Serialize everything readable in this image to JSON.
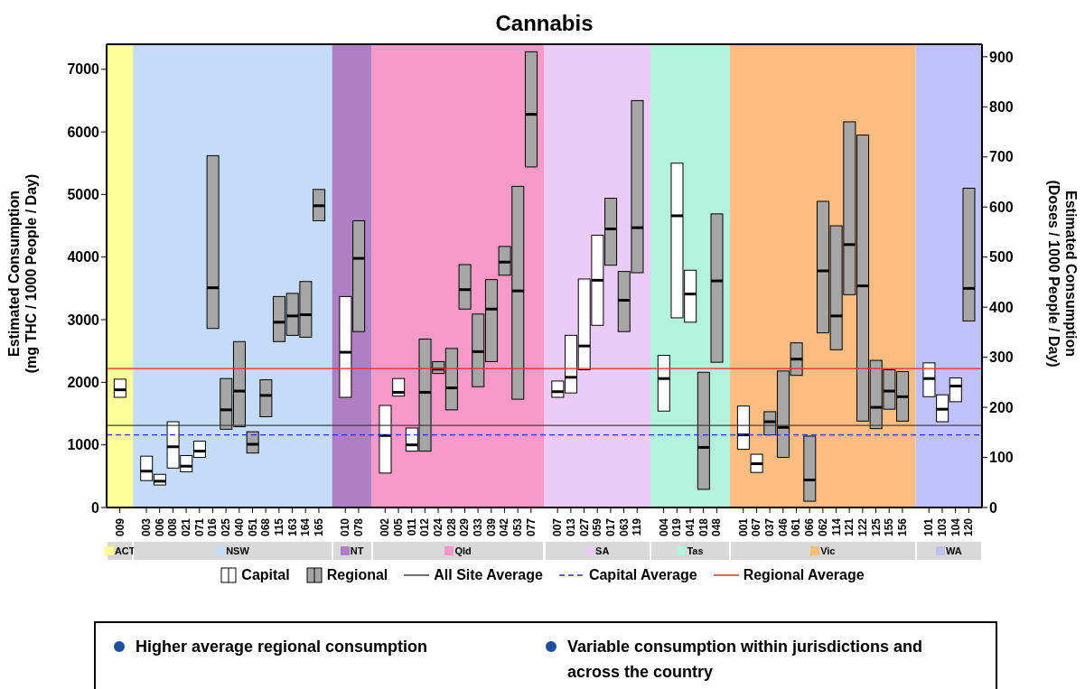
{
  "chart_data": {
    "type": "box",
    "title": "Cannabis",
    "ylabel": "Estimated Consumption\n(mg THC / 1000 People / Day)",
    "y2label": "Estimated Consumption\n(Doses / 1000 People / Day)",
    "categories": [
      "009",
      "003",
      "006",
      "008",
      "021",
      "071",
      "016",
      "025",
      "040",
      "051",
      "068",
      "115",
      "163",
      "164",
      "165",
      "010",
      "078",
      "002",
      "005",
      "011",
      "012",
      "024",
      "028",
      "029",
      "033",
      "039",
      "042",
      "053",
      "077",
      "007",
      "013",
      "027",
      "059",
      "017",
      "063",
      "119",
      "004",
      "019",
      "041",
      "018",
      "048",
      "001",
      "067",
      "037",
      "046",
      "061",
      "066",
      "062",
      "114",
      "121",
      "122",
      "125",
      "155",
      "156",
      "101",
      "103",
      "104",
      "120"
    ],
    "series": [
      {
        "name": "Capital",
        "color": "#ffffff",
        "boxes": [
          {
            "low": 1760,
            "q1": 1760,
            "median": 1880,
            "q3": 2050,
            "high": 2050
          },
          {
            "low": 430,
            "q1": 430,
            "median": 580,
            "q3": 820,
            "high": 820
          },
          {
            "low": 360,
            "q1": 360,
            "median": 420,
            "q3": 530,
            "high": 530
          },
          {
            "low": 630,
            "q1": 630,
            "median": 970,
            "q3": 1370,
            "high": 1370
          },
          {
            "low": 570,
            "q1": 570,
            "median": 660,
            "q3": 830,
            "high": 830
          },
          {
            "low": 800,
            "q1": 800,
            "median": 900,
            "q3": 1060,
            "high": 1060
          },
          null,
          null,
          null,
          null,
          null,
          null,
          null,
          null,
          null,
          {
            "low": 1760,
            "q1": 1760,
            "median": 2480,
            "q3": 3370,
            "high": 3370
          },
          null,
          {
            "low": 550,
            "q1": 550,
            "median": 1150,
            "q3": 1630,
            "high": 1630
          },
          {
            "low": 1780,
            "q1": 1780,
            "median": 1840,
            "q3": 2060,
            "high": 2060
          },
          {
            "low": 900,
            "q1": 900,
            "median": 1000,
            "q3": 1270,
            "high": 1270
          },
          null,
          null,
          null,
          null,
          null,
          null,
          null,
          null,
          null,
          {
            "low": 1760,
            "q1": 1760,
            "median": 1850,
            "q3": 2020,
            "high": 2020
          },
          {
            "low": 1830,
            "q1": 1830,
            "median": 2080,
            "q3": 2750,
            "high": 2750
          },
          {
            "low": 2200,
            "q1": 2200,
            "median": 2580,
            "q3": 3650,
            "high": 3650
          },
          {
            "low": 2910,
            "q1": 2910,
            "median": 3630,
            "q3": 4350,
            "high": 4350
          },
          null,
          null,
          null,
          {
            "low": 1540,
            "q1": 1540,
            "median": 2060,
            "q3": 2430,
            "high": 2430
          },
          {
            "low": 3030,
            "q1": 3030,
            "median": 4660,
            "q3": 5500,
            "high": 5500
          },
          {
            "low": 2960,
            "q1": 2960,
            "median": 3410,
            "q3": 3790,
            "high": 3790
          },
          null,
          null,
          {
            "low": 930,
            "q1": 930,
            "median": 1160,
            "q3": 1620,
            "high": 1620
          },
          {
            "low": 560,
            "q1": 560,
            "median": 700,
            "q3": 850,
            "high": 850
          },
          null,
          null,
          null,
          null,
          null,
          null,
          null,
          null,
          null,
          null,
          null,
          {
            "low": 1770,
            "q1": 1770,
            "median": 2060,
            "q3": 2310,
            "high": 2310
          },
          {
            "low": 1370,
            "q1": 1370,
            "median": 1570,
            "q3": 1800,
            "high": 1800
          },
          {
            "low": 1690,
            "q1": 1690,
            "median": 1940,
            "q3": 2070,
            "high": 2070
          },
          null
        ]
      },
      {
        "name": "Regional",
        "color": "#a6a6a6",
        "boxes": [
          null,
          null,
          null,
          null,
          null,
          null,
          {
            "low": 2860,
            "q1": 2860,
            "median": 3510,
            "q3": 5620,
            "high": 5620
          },
          {
            "low": 1250,
            "q1": 1250,
            "median": 1560,
            "q3": 2060,
            "high": 2060
          },
          {
            "low": 1290,
            "q1": 1290,
            "median": 1860,
            "q3": 2650,
            "high": 2650
          },
          {
            "low": 870,
            "q1": 870,
            "median": 1010,
            "q3": 1210,
            "high": 1210
          },
          {
            "low": 1450,
            "q1": 1450,
            "median": 1790,
            "q3": 2040,
            "high": 2040
          },
          {
            "low": 2650,
            "q1": 2650,
            "median": 2960,
            "q3": 3370,
            "high": 3370
          },
          {
            "low": 2750,
            "q1": 2750,
            "median": 3060,
            "q3": 3420,
            "high": 3420
          },
          {
            "low": 2720,
            "q1": 2720,
            "median": 3080,
            "q3": 3610,
            "high": 3610
          },
          {
            "low": 4580,
            "q1": 4580,
            "median": 4820,
            "q3": 5080,
            "high": 5080
          },
          null,
          {
            "low": 2810,
            "q1": 2810,
            "median": 3980,
            "q3": 4580,
            "high": 4580
          },
          null,
          null,
          null,
          {
            "low": 900,
            "q1": 900,
            "median": 1840,
            "q3": 2690,
            "high": 2690
          },
          {
            "low": 2140,
            "q1": 2140,
            "median": 2210,
            "q3": 2330,
            "high": 2330
          },
          {
            "low": 1560,
            "q1": 1560,
            "median": 1910,
            "q3": 2540,
            "high": 2540
          },
          {
            "low": 3170,
            "q1": 3170,
            "median": 3480,
            "q3": 3880,
            "high": 3880
          },
          {
            "low": 1930,
            "q1": 1930,
            "median": 2490,
            "q3": 3090,
            "high": 3090
          },
          {
            "low": 2330,
            "q1": 2330,
            "median": 3170,
            "q3": 3640,
            "high": 3640
          },
          {
            "low": 3710,
            "q1": 3710,
            "median": 3920,
            "q3": 4170,
            "high": 4170
          },
          {
            "low": 1730,
            "q1": 1730,
            "median": 3460,
            "q3": 5130,
            "high": 5130
          },
          {
            "low": 5440,
            "q1": 5440,
            "median": 6280,
            "q3": 7280,
            "high": 7280
          },
          null,
          null,
          null,
          null,
          {
            "low": 3870,
            "q1": 3870,
            "median": 4450,
            "q3": 4940,
            "high": 4940
          },
          {
            "low": 2810,
            "q1": 2810,
            "median": 3310,
            "q3": 3770,
            "high": 3770
          },
          {
            "low": 3750,
            "q1": 3750,
            "median": 4470,
            "q3": 6500,
            "high": 6500
          },
          null,
          null,
          null,
          {
            "low": 290,
            "q1": 290,
            "median": 960,
            "q3": 2160,
            "high": 2160
          },
          {
            "low": 2320,
            "q1": 2320,
            "median": 3620,
            "q3": 4690,
            "high": 4690
          },
          null,
          null,
          {
            "low": 1160,
            "q1": 1160,
            "median": 1370,
            "q3": 1530,
            "high": 1530
          },
          {
            "low": 800,
            "q1": 800,
            "median": 1280,
            "q3": 2180,
            "high": 2180
          },
          {
            "low": 2110,
            "q1": 2110,
            "median": 2370,
            "q3": 2630,
            "high": 2630
          },
          {
            "low": 100,
            "q1": 100,
            "median": 440,
            "q3": 1140,
            "high": 1140
          },
          {
            "low": 2790,
            "q1": 2790,
            "median": 3780,
            "q3": 4890,
            "high": 4890
          },
          {
            "low": 2520,
            "q1": 2520,
            "median": 3060,
            "q3": 4500,
            "high": 4500
          },
          {
            "low": 3400,
            "q1": 3400,
            "median": 4200,
            "q3": 6160,
            "high": 6160
          },
          {
            "low": 1380,
            "q1": 1380,
            "median": 3540,
            "q3": 5950,
            "high": 5950
          },
          {
            "low": 1260,
            "q1": 1260,
            "median": 1600,
            "q3": 2350,
            "high": 2350
          },
          {
            "low": 1570,
            "q1": 1570,
            "median": 1860,
            "q3": 2200,
            "high": 2200
          },
          {
            "low": 1380,
            "q1": 1380,
            "median": 1770,
            "q3": 2170,
            "high": 2170
          },
          null,
          null,
          null,
          {
            "low": 2980,
            "q1": 2980,
            "median": 3500,
            "q3": 5100,
            "high": 5100
          }
        ]
      }
    ],
    "ylim": [
      0,
      7400
    ],
    "yticks": [
      0,
      1000,
      2000,
      3000,
      4000,
      5000,
      6000,
      7000
    ],
    "y2lim": [
      0,
      925
    ],
    "y2ticks": [
      0,
      100,
      200,
      300,
      400,
      500,
      600,
      700,
      800,
      900
    ],
    "ref_lines": [
      {
        "axis": "y",
        "value": 1310,
        "label": "All Site Average",
        "color": "#404040",
        "line_style": "solid"
      },
      {
        "axis": "y",
        "value": 1160,
        "label": "Capital Average",
        "color": "#2a2af0",
        "line_style": "dashed"
      },
      {
        "axis": "y",
        "value": 2220,
        "label": "Regional Average",
        "color": "#ee2a2a",
        "line_style": "solid"
      }
    ],
    "bands": [
      {
        "axis": "x",
        "from": "009",
        "to": "009",
        "label": "ACT",
        "color": "#ffff99"
      },
      {
        "axis": "x",
        "from": "003",
        "to": "165",
        "label": "NSW",
        "color": "#c5dcf8"
      },
      {
        "axis": "x",
        "from": "010",
        "to": "078",
        "label": "NT",
        "color": "#ae7fc3"
      },
      {
        "axis": "x",
        "from": "002",
        "to": "077",
        "label": "Qld",
        "color": "#f89ac8"
      },
      {
        "axis": "x",
        "from": "007",
        "to": "119",
        "label": "SA",
        "color": "#eccbf6"
      },
      {
        "axis": "x",
        "from": "004",
        "to": "048",
        "label": "Tas",
        "color": "#b3f3dd"
      },
      {
        "axis": "x",
        "from": "001",
        "to": "156",
        "label": "Vic",
        "color": "#fdbd80"
      },
      {
        "axis": "x",
        "from": "101",
        "to": "120",
        "label": "WA",
        "color": "#c0c0fc"
      }
    ],
    "legend": "bottom",
    "grid": false,
    "annotations": [
      "Higher average regional consumption",
      "Variable consumption within jurisdictions and across the country"
    ]
  }
}
